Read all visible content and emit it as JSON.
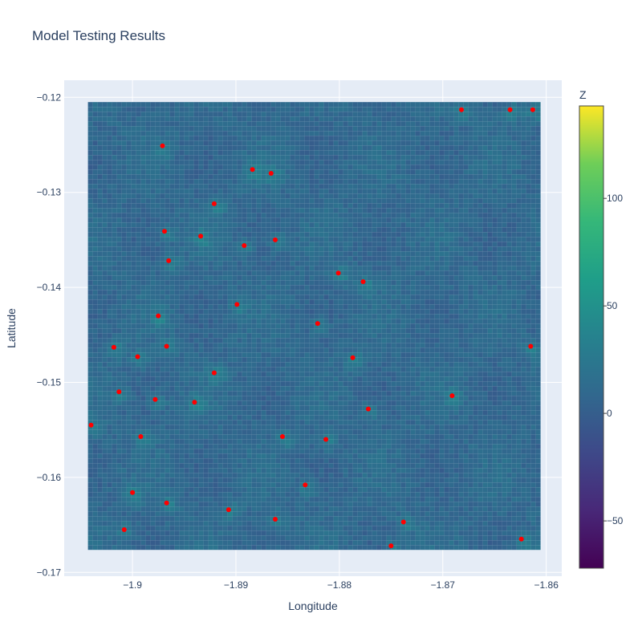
{
  "chart_data": {
    "type": "scatter",
    "title": "Model Testing Results",
    "xlabel": "Longitude",
    "ylabel": "Latitude",
    "xlim": [
      -1.9066,
      -1.8585
    ],
    "ylim": [
      -0.1704,
      -0.1182
    ],
    "x_ticks": [
      -1.9,
      -1.89,
      -1.88,
      -1.87,
      -1.86
    ],
    "x_tick_labels": [
      "−1.9",
      "−1.89",
      "−1.88",
      "−1.87",
      "−1.86"
    ],
    "y_ticks": [
      -0.12,
      -0.13,
      -0.14,
      -0.15,
      -0.16,
      -0.17
    ],
    "y_tick_labels": [
      "−0.12",
      "−0.13",
      "−0.14",
      "−0.15",
      "−0.16",
      "−0.17"
    ],
    "grid": true,
    "background_field": {
      "description": "dense grid of colored points covering the region (z values on viridis scale)",
      "x_range": [
        -1.9043,
        -1.861
      ],
      "y_range": [
        -0.1675,
        -0.1205
      ],
      "typical_z": 10,
      "colorscale": "viridis"
    },
    "colorbar": {
      "title": "Z",
      "zmin": -72,
      "zmax": 143,
      "ticks": [
        100,
        50,
        0,
        -50
      ],
      "tick_labels": [
        "100",
        "50",
        "0",
        "−50"
      ]
    },
    "highlight_points": {
      "color": "#ff0000",
      "x": [
        -1.8682,
        -1.8635,
        -1.8613,
        -1.8971,
        -1.8884,
        -1.8866,
        -1.8921,
        -1.8969,
        -1.8934,
        -1.8892,
        -1.8862,
        -1.8965,
        -1.8801,
        -1.8777,
        -1.8899,
        -1.8975,
        -1.8821,
        -1.9018,
        -1.8995,
        -1.8967,
        -1.8787,
        -1.8615,
        -1.8921,
        -1.9013,
        -1.8978,
        -1.894,
        -1.8691,
        -1.8772,
        -1.904,
        -1.8992,
        -1.8855,
        -1.8813,
        -1.8833,
        -1.9,
        -1.8967,
        -1.8907,
        -1.8862,
        -1.8738,
        -1.9008,
        -1.8624,
        -1.875
      ],
      "y": [
        -0.1213,
        -0.1213,
        -0.1213,
        -0.1251,
        -0.1276,
        -0.128,
        -0.1312,
        -0.1341,
        -0.1346,
        -0.1356,
        -0.135,
        -0.1372,
        -0.1385,
        -0.1394,
        -0.1418,
        -0.143,
        -0.1438,
        -0.1463,
        -0.1473,
        -0.1462,
        -0.1474,
        -0.1462,
        -0.149,
        -0.151,
        -0.1518,
        -0.1521,
        -0.1514,
        -0.1528,
        -0.1545,
        -0.1557,
        -0.1557,
        -0.156,
        -0.1608,
        -0.1616,
        -0.1627,
        -0.1634,
        -0.1644,
        -0.1647,
        -0.1655,
        -0.1665,
        -0.1672
      ]
    }
  }
}
